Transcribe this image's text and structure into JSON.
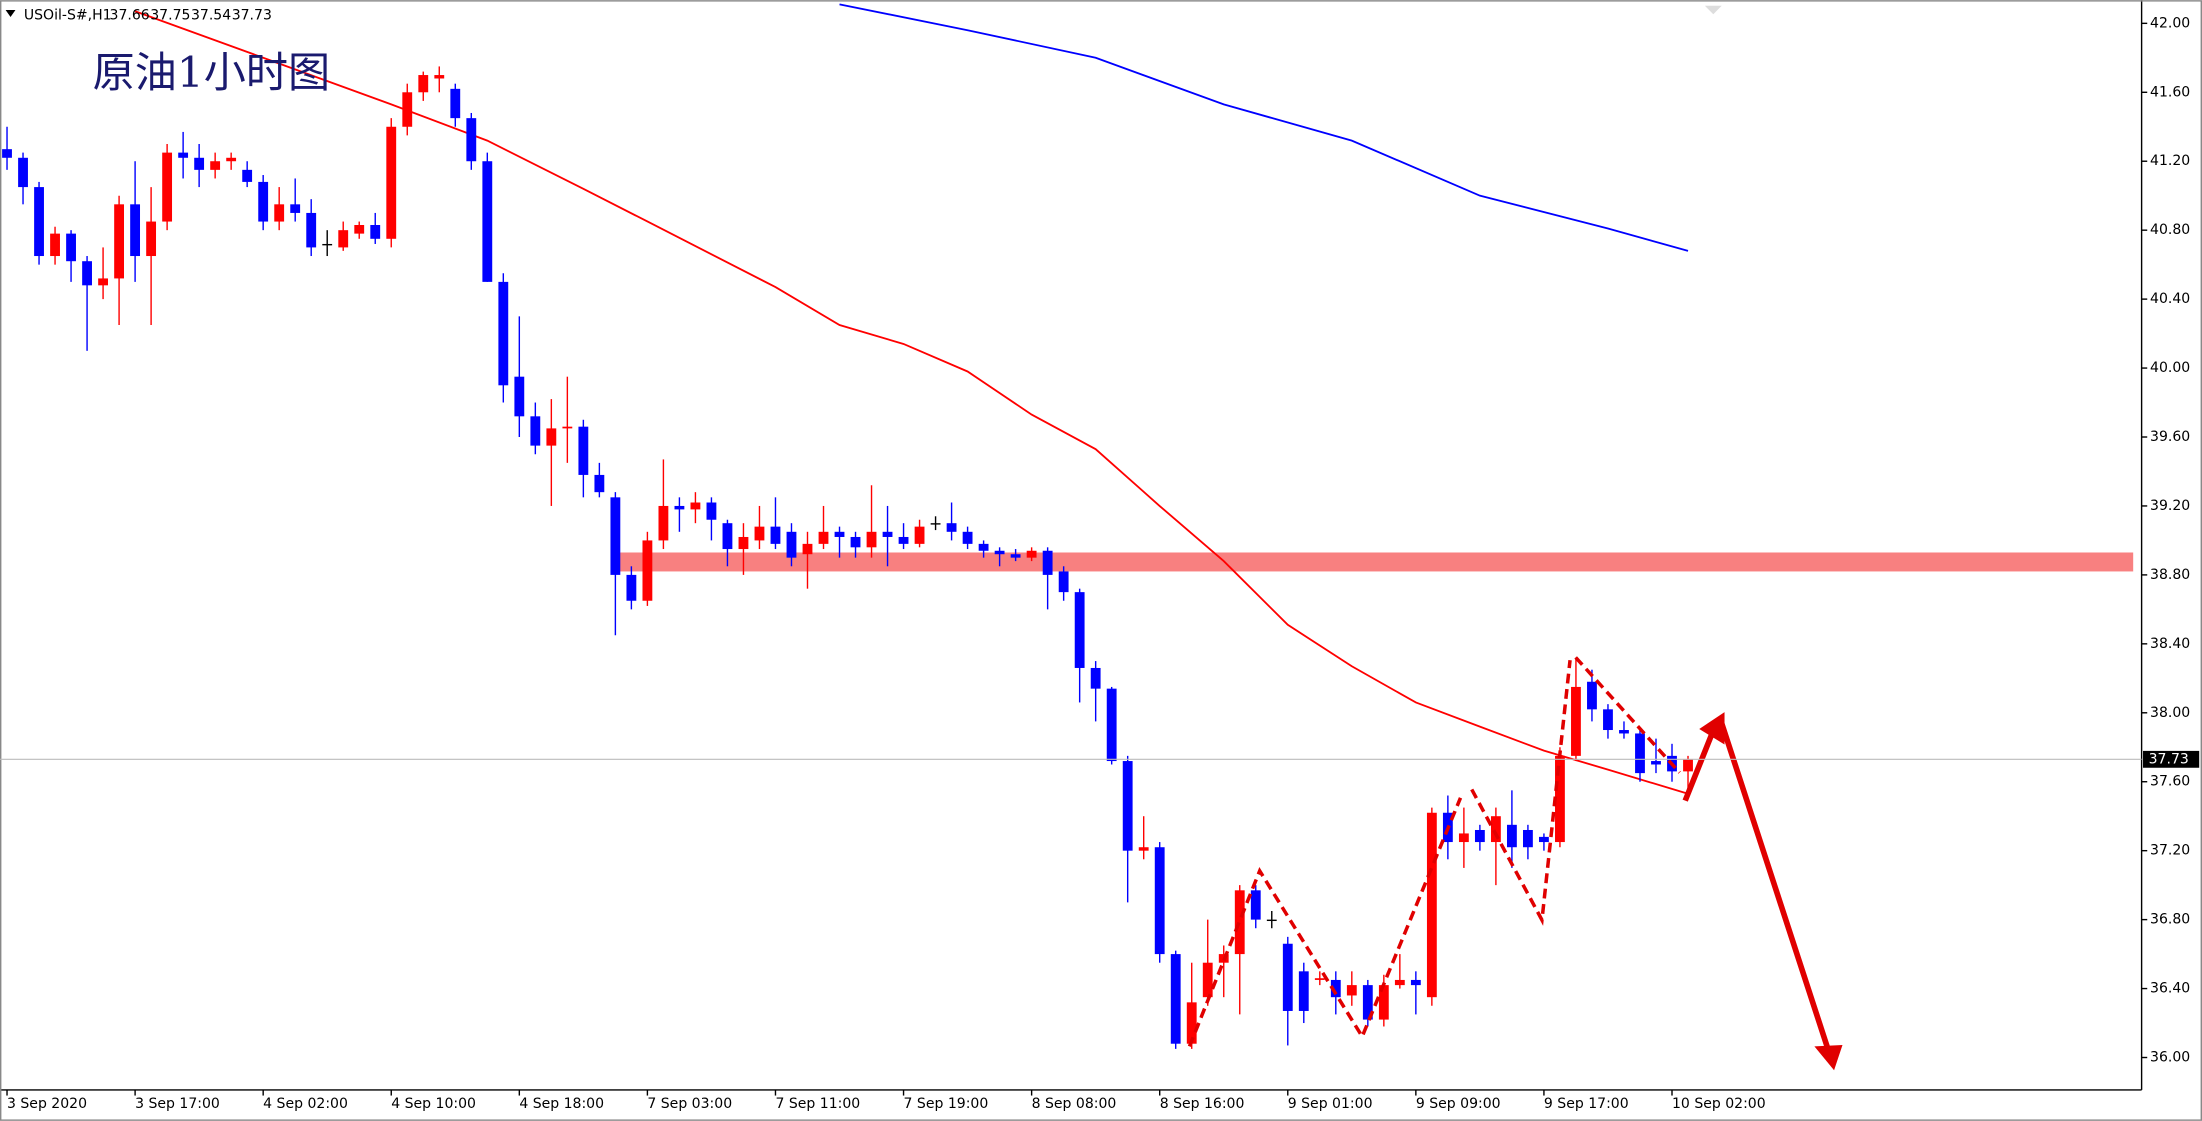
{
  "chart_data": {
    "type": "candlestick",
    "title": "原油1小时图",
    "symbol": "USOil-S#,H1",
    "categories": [
      "3 Sep 2020",
      null,
      null,
      null,
      null,
      null,
      null,
      null,
      "3 Sep 17:00",
      null,
      null,
      null,
      null,
      null,
      null,
      null,
      "4 Sep 02:00",
      null,
      null,
      null,
      null,
      null,
      null,
      null,
      "4 Sep 10:00",
      null,
      null,
      null,
      null,
      null,
      null,
      null,
      "4 Sep 18:00",
      null,
      null,
      null,
      null,
      null,
      null,
      null,
      "7 Sep 03:00",
      null,
      null,
      null,
      null,
      null,
      null,
      null,
      "7 Sep 11:00",
      null,
      null,
      null,
      null,
      null,
      null,
      null,
      "7 Sep 19:00",
      null,
      null,
      null,
      null,
      null,
      null,
      null,
      "8 Sep 08:00",
      null,
      null,
      null,
      null,
      null,
      null,
      null,
      "8 Sep 16:00",
      null,
      null,
      null,
      null,
      null,
      null,
      null,
      "9 Sep 01:00",
      null,
      null,
      null,
      null,
      null,
      null,
      null,
      "9 Sep 09:00",
      null,
      null,
      null,
      null,
      null,
      null,
      null,
      "9 Sep 17:00",
      null,
      null,
      null,
      null,
      null,
      null,
      null,
      "10 Sep 02:00",
      null
    ],
    "open": [
      41.27,
      41.22,
      41.05,
      40.65,
      40.78,
      40.62,
      40.48,
      40.52,
      40.95,
      40.65,
      40.85,
      41.25,
      41.22,
      41.15,
      41.2,
      41.15,
      41.08,
      40.85,
      40.95,
      40.9,
      40.72,
      40.7,
      40.78,
      40.83,
      40.75,
      41.4,
      41.6,
      41.68,
      41.62,
      41.45,
      41.2,
      40.5,
      39.95,
      39.72,
      39.55,
      39.65,
      39.66,
      39.38,
      39.25,
      38.8,
      38.65,
      39.0,
      39.2,
      39.18,
      39.22,
      39.1,
      38.95,
      39.0,
      39.08,
      39.05,
      38.92,
      38.98,
      39.05,
      39.02,
      38.96,
      39.05,
      39.02,
      38.98,
      39.1,
      39.1,
      39.05,
      38.98,
      38.94,
      38.92,
      38.9,
      38.94,
      38.82,
      38.7,
      38.26,
      38.14,
      37.72,
      37.2,
      37.22,
      36.6,
      36.08,
      36.35,
      36.55,
      36.6,
      36.97,
      36.8,
      36.66,
      36.5,
      36.45,
      36.45,
      36.36,
      36.42,
      36.22,
      36.42,
      36.45,
      36.35,
      37.42,
      37.25,
      37.32,
      37.25,
      37.35,
      37.32,
      37.28,
      37.25,
      37.75,
      38.18,
      38.02,
      37.9,
      37.88,
      37.72,
      37.75,
      37.66
    ],
    "high": [
      41.4,
      41.25,
      41.08,
      40.82,
      40.8,
      40.65,
      40.7,
      41.0,
      41.2,
      41.05,
      41.3,
      41.37,
      41.3,
      41.25,
      41.25,
      41.2,
      41.12,
      41.05,
      41.1,
      40.98,
      40.8,
      40.85,
      40.85,
      40.9,
      41.45,
      41.65,
      41.72,
      41.75,
      41.65,
      41.48,
      41.25,
      40.55,
      40.3,
      39.8,
      39.82,
      39.95,
      39.7,
      39.45,
      39.28,
      38.85,
      39.05,
      39.47,
      39.25,
      39.28,
      39.25,
      39.12,
      39.1,
      39.2,
      39.25,
      39.1,
      39.05,
      39.2,
      39.08,
      39.05,
      39.32,
      39.2,
      39.1,
      39.12,
      39.14,
      39.22,
      39.08,
      39.0,
      38.96,
      38.95,
      38.96,
      38.96,
      38.85,
      38.72,
      38.3,
      38.15,
      37.75,
      37.4,
      37.25,
      36.62,
      36.55,
      36.8,
      36.65,
      37.0,
      37.0,
      36.85,
      36.7,
      36.55,
      36.5,
      36.5,
      36.5,
      36.45,
      36.48,
      36.6,
      36.5,
      37.45,
      37.52,
      37.45,
      37.35,
      37.45,
      37.55,
      37.35,
      37.3,
      37.8,
      38.32,
      38.25,
      38.05,
      37.95,
      37.9,
      37.85,
      37.82,
      37.75
    ],
    "low": [
      41.15,
      40.95,
      40.6,
      40.6,
      40.5,
      40.1,
      40.4,
      40.25,
      40.5,
      40.25,
      40.8,
      41.1,
      41.05,
      41.1,
      41.15,
      41.05,
      40.8,
      40.8,
      40.85,
      40.65,
      40.65,
      40.68,
      40.75,
      40.72,
      40.7,
      41.35,
      41.55,
      41.6,
      41.4,
      41.15,
      40.5,
      39.8,
      39.6,
      39.5,
      39.2,
      39.45,
      39.25,
      39.25,
      38.45,
      38.6,
      38.62,
      38.95,
      39.05,
      39.1,
      39.0,
      38.85,
      38.8,
      38.95,
      38.95,
      38.85,
      38.72,
      38.95,
      38.9,
      38.9,
      38.9,
      38.85,
      38.95,
      38.96,
      39.06,
      39.0,
      38.95,
      38.9,
      38.85,
      38.88,
      38.88,
      38.6,
      38.65,
      38.06,
      37.95,
      37.7,
      36.9,
      37.15,
      36.55,
      36.05,
      36.05,
      36.3,
      36.35,
      36.25,
      36.75,
      36.75,
      36.07,
      36.2,
      36.42,
      36.25,
      36.3,
      36.18,
      36.18,
      36.4,
      36.25,
      36.3,
      37.15,
      37.1,
      37.2,
      37.0,
      37.1,
      37.15,
      37.2,
      37.22,
      37.72,
      37.95,
      37.85,
      37.85,
      37.6,
      37.65,
      37.6,
      37.54
    ],
    "close": [
      41.22,
      41.05,
      40.65,
      40.78,
      40.62,
      40.48,
      40.52,
      40.95,
      40.65,
      40.85,
      41.25,
      41.22,
      41.15,
      41.2,
      41.22,
      41.08,
      40.85,
      40.95,
      40.9,
      40.7,
      40.72,
      40.8,
      40.83,
      40.75,
      41.4,
      41.6,
      41.7,
      41.7,
      41.45,
      41.2,
      40.5,
      39.9,
      39.72,
      39.55,
      39.65,
      39.66,
      39.38,
      39.28,
      38.8,
      38.65,
      39.0,
      39.2,
      39.18,
      39.22,
      39.12,
      38.95,
      39.02,
      39.08,
      38.98,
      38.9,
      38.98,
      39.05,
      39.02,
      38.96,
      39.05,
      39.02,
      38.98,
      39.08,
      39.1,
      39.05,
      38.98,
      38.94,
      38.92,
      38.9,
      38.94,
      38.8,
      38.7,
      38.26,
      38.14,
      37.72,
      37.2,
      37.22,
      36.6,
      36.08,
      36.32,
      36.55,
      36.6,
      36.97,
      36.8,
      36.8,
      36.27,
      36.27,
      36.46,
      36.35,
      36.42,
      36.22,
      36.42,
      36.45,
      36.42,
      37.42,
      37.25,
      37.3,
      37.25,
      37.4,
      37.22,
      37.22,
      37.25,
      37.75,
      38.15,
      38.02,
      37.9,
      37.88,
      37.65,
      37.7,
      37.66,
      37.73
    ],
    "up_color": "#ff0000",
    "down_color": "#0000ff",
    "doji_color": "#000000",
    "series": [
      {
        "color": "#ff0000",
        "x": [
          8,
          16,
          24,
          30,
          36,
          40,
          48,
          52,
          56,
          60,
          64,
          68,
          72,
          76,
          80,
          84,
          88,
          92,
          96,
          100,
          105
        ],
        "values": [
          42.07,
          41.8,
          41.53,
          41.32,
          41.04,
          40.85,
          40.47,
          40.25,
          40.14,
          39.98,
          39.73,
          39.53,
          39.2,
          38.88,
          38.51,
          38.27,
          38.06,
          37.92,
          37.78,
          37.67,
          37.53
        ]
      },
      {
        "color": "#0000ff",
        "x": [
          52,
          60,
          68,
          76,
          84,
          92,
          100,
          105
        ],
        "values": [
          42.11,
          41.96,
          41.8,
          41.53,
          41.32,
          41.0,
          40.81,
          40.68
        ]
      }
    ],
    "zone": [
      38.82,
      38.93
    ],
    "zone_color": "#f88080",
    "ylim": [
      35.82,
      42.11
    ],
    "yticks": [
      {
        "value": 36,
        "label": "36.00"
      },
      {
        "value": 36.4,
        "label": "36.40"
      },
      {
        "value": 36.8,
        "label": "36.80"
      },
      {
        "value": 37.2,
        "label": "37.20"
      },
      {
        "value": 37.6,
        "label": "37.60"
      },
      {
        "value": 38,
        "label": "38.00"
      },
      {
        "value": 38.4,
        "label": "38.40"
      },
      {
        "value": 38.8,
        "label": "38.80"
      },
      {
        "value": 39.2,
        "label": "39.20"
      },
      {
        "value": 39.6,
        "label": "39.60"
      },
      {
        "value": 40,
        "label": "40.00"
      },
      {
        "value": 40.4,
        "label": "40.40"
      },
      {
        "value": 40.8,
        "label": "40.80"
      },
      {
        "value": 41.2,
        "label": "41.20"
      },
      {
        "value": 41.6,
        "label": "41.60"
      },
      {
        "value": 42,
        "label": "42.00"
      }
    ]
  }
}
